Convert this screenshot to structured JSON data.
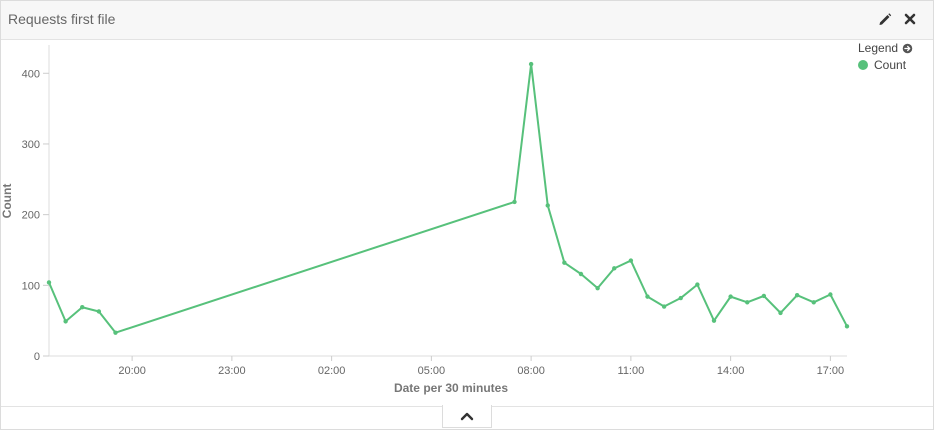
{
  "panel": {
    "title": "Requests first file"
  },
  "legend": {
    "title": "Legend",
    "items": [
      {
        "label": "Count",
        "color": "#57c17b"
      }
    ]
  },
  "icons": {
    "edit": "pencil-icon",
    "close": "close-icon",
    "legend_toggle": "arrow-right-circle-icon",
    "collapse": "chevron-up-icon"
  },
  "chart_data": {
    "type": "line",
    "title": "",
    "xlabel": "Date per 30 minutes",
    "ylabel": "Count",
    "ylim": [
      0,
      440
    ],
    "yticks": [
      0,
      100,
      200,
      300,
      400
    ],
    "x_tick_labels": [
      "20:00",
      "23:00",
      "02:00",
      "05:00",
      "08:00",
      "11:00",
      "14:00",
      "17:00"
    ],
    "x_tick_hours": [
      20,
      23,
      26,
      29,
      32,
      35,
      38,
      41
    ],
    "x_range_hours": [
      17.5,
      41.5
    ],
    "grid": false,
    "legend_position": "top-right",
    "series": [
      {
        "name": "Count",
        "color": "#57c17b",
        "points": [
          {
            "x": "17:30",
            "y": 104
          },
          {
            "x": "18:00",
            "y": 49
          },
          {
            "x": "18:30",
            "y": 69
          },
          {
            "x": "19:00",
            "y": 63
          },
          {
            "x": "19:30",
            "y": 33
          },
          {
            "x": "07:30",
            "y": 218
          },
          {
            "x": "08:00",
            "y": 413
          },
          {
            "x": "08:30",
            "y": 213
          },
          {
            "x": "09:00",
            "y": 132
          },
          {
            "x": "09:30",
            "y": 116
          },
          {
            "x": "10:00",
            "y": 96
          },
          {
            "x": "10:30",
            "y": 124
          },
          {
            "x": "11:00",
            "y": 135
          },
          {
            "x": "11:30",
            "y": 84
          },
          {
            "x": "12:00",
            "y": 70
          },
          {
            "x": "12:30",
            "y": 82
          },
          {
            "x": "13:00",
            "y": 101
          },
          {
            "x": "13:30",
            "y": 50
          },
          {
            "x": "14:00",
            "y": 84
          },
          {
            "x": "14:30",
            "y": 76
          },
          {
            "x": "15:00",
            "y": 85
          },
          {
            "x": "15:30",
            "y": 61
          },
          {
            "x": "16:00",
            "y": 86
          },
          {
            "x": "16:30",
            "y": 76
          },
          {
            "x": "17:00",
            "y": 87
          },
          {
            "x": "17:30",
            "y": 42
          }
        ]
      }
    ]
  }
}
